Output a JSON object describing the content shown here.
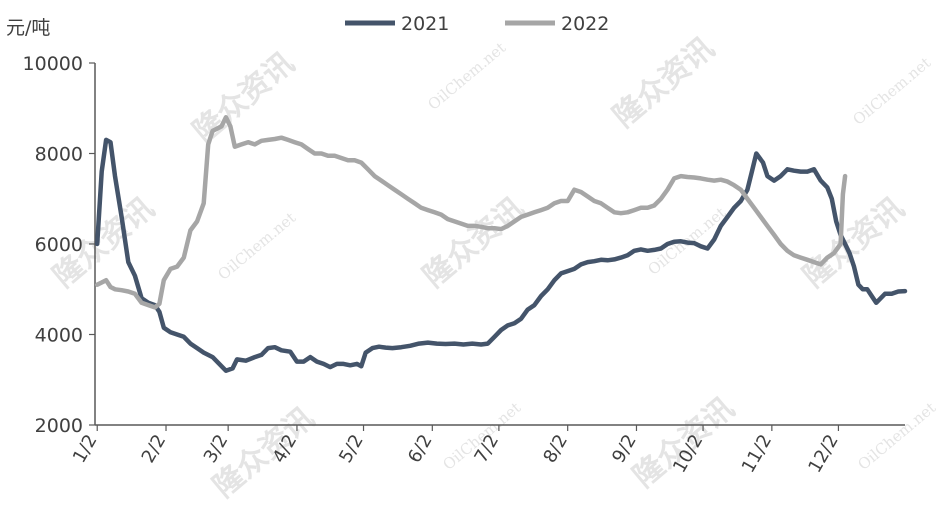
{
  "chart_data": {
    "type": "line",
    "ylabel": "元/吨",
    "ylim": [
      2000,
      10000
    ],
    "yticks": [
      2000,
      4000,
      6000,
      8000,
      10000
    ],
    "xlim": [
      0,
      365
    ],
    "x_ticks": [
      {
        "label": "1/2",
        "day": 1
      },
      {
        "label": "2/2",
        "day": 32
      },
      {
        "label": "3/2",
        "day": 60
      },
      {
        "label": "4/2",
        "day": 91
      },
      {
        "label": "5/2",
        "day": 121
      },
      {
        "label": "6/2",
        "day": 152
      },
      {
        "label": "7/2",
        "day": 182
      },
      {
        "label": "8/2",
        "day": 213
      },
      {
        "label": "9/2",
        "day": 244
      },
      {
        "label": "10/2",
        "day": 274
      },
      {
        "label": "11/2",
        "day": 305
      },
      {
        "label": "12/2",
        "day": 335
      }
    ],
    "legend_position": "top",
    "grid": false,
    "series": [
      {
        "name": "2021",
        "color": "#44546a",
        "points": [
          [
            1,
            6000
          ],
          [
            3,
            7600
          ],
          [
            5,
            8300
          ],
          [
            7,
            8250
          ],
          [
            9,
            7500
          ],
          [
            12,
            6600
          ],
          [
            15,
            5600
          ],
          [
            18,
            5300
          ],
          [
            21,
            4800
          ],
          [
            24,
            4700
          ],
          [
            27,
            4650
          ],
          [
            29,
            4500
          ],
          [
            31,
            4150
          ],
          [
            34,
            4050
          ],
          [
            37,
            4000
          ],
          [
            40,
            3950
          ],
          [
            43,
            3800
          ],
          [
            46,
            3700
          ],
          [
            49,
            3600
          ],
          [
            53,
            3500
          ],
          [
            56,
            3350
          ],
          [
            59,
            3200
          ],
          [
            62,
            3250
          ],
          [
            64,
            3450
          ],
          [
            68,
            3420
          ],
          [
            72,
            3500
          ],
          [
            75,
            3550
          ],
          [
            78,
            3700
          ],
          [
            81,
            3720
          ],
          [
            84,
            3650
          ],
          [
            88,
            3620
          ],
          [
            91,
            3400
          ],
          [
            94,
            3400
          ],
          [
            97,
            3500
          ],
          [
            100,
            3400
          ],
          [
            103,
            3350
          ],
          [
            106,
            3280
          ],
          [
            109,
            3350
          ],
          [
            112,
            3350
          ],
          [
            115,
            3320
          ],
          [
            118,
            3350
          ],
          [
            120,
            3300
          ],
          [
            122,
            3600
          ],
          [
            125,
            3700
          ],
          [
            128,
            3730
          ],
          [
            131,
            3710
          ],
          [
            134,
            3700
          ],
          [
            138,
            3720
          ],
          [
            142,
            3750
          ],
          [
            146,
            3800
          ],
          [
            150,
            3820
          ],
          [
            154,
            3800
          ],
          [
            158,
            3790
          ],
          [
            162,
            3800
          ],
          [
            166,
            3780
          ],
          [
            170,
            3800
          ],
          [
            174,
            3780
          ],
          [
            177,
            3800
          ],
          [
            180,
            3950
          ],
          [
            183,
            4100
          ],
          [
            186,
            4200
          ],
          [
            189,
            4250
          ],
          [
            192,
            4350
          ],
          [
            195,
            4550
          ],
          [
            198,
            4650
          ],
          [
            201,
            4850
          ],
          [
            204,
            5000
          ],
          [
            207,
            5200
          ],
          [
            210,
            5350
          ],
          [
            213,
            5400
          ],
          [
            216,
            5450
          ],
          [
            219,
            5550
          ],
          [
            222,
            5600
          ],
          [
            225,
            5620
          ],
          [
            228,
            5650
          ],
          [
            231,
            5640
          ],
          [
            234,
            5660
          ],
          [
            237,
            5700
          ],
          [
            240,
            5750
          ],
          [
            243,
            5850
          ],
          [
            246,
            5880
          ],
          [
            249,
            5850
          ],
          [
            252,
            5870
          ],
          [
            255,
            5900
          ],
          [
            258,
            6000
          ],
          [
            261,
            6050
          ],
          [
            264,
            6060
          ],
          [
            267,
            6030
          ],
          [
            270,
            6020
          ],
          [
            273,
            5950
          ],
          [
            276,
            5900
          ],
          [
            279,
            6100
          ],
          [
            282,
            6400
          ],
          [
            285,
            6600
          ],
          [
            288,
            6800
          ],
          [
            291,
            6950
          ],
          [
            294,
            7200
          ],
          [
            296,
            7600
          ],
          [
            298,
            8000
          ],
          [
            301,
            7800
          ],
          [
            303,
            7500
          ],
          [
            306,
            7400
          ],
          [
            309,
            7500
          ],
          [
            312,
            7650
          ],
          [
            315,
            7620
          ],
          [
            318,
            7600
          ],
          [
            321,
            7600
          ],
          [
            324,
            7650
          ],
          [
            327,
            7400
          ],
          [
            330,
            7250
          ],
          [
            332,
            7000
          ],
          [
            334,
            6500
          ],
          [
            336,
            6200
          ],
          [
            338,
            6000
          ],
          [
            340,
            5800
          ],
          [
            342,
            5500
          ],
          [
            344,
            5100
          ],
          [
            346,
            5000
          ],
          [
            348,
            5000
          ],
          [
            350,
            4850
          ],
          [
            352,
            4700
          ],
          [
            354,
            4800
          ],
          [
            356,
            4900
          ],
          [
            359,
            4900
          ],
          [
            362,
            4950
          ],
          [
            365,
            4960
          ]
        ]
      },
      {
        "name": "2022",
        "color": "#a6a6a6",
        "points": [
          [
            1,
            5100
          ],
          [
            3,
            5150
          ],
          [
            5,
            5200
          ],
          [
            7,
            5050
          ],
          [
            9,
            5000
          ],
          [
            12,
            4980
          ],
          [
            15,
            4950
          ],
          [
            18,
            4900
          ],
          [
            21,
            4700
          ],
          [
            24,
            4650
          ],
          [
            27,
            4600
          ],
          [
            29,
            4680
          ],
          [
            31,
            5200
          ],
          [
            34,
            5450
          ],
          [
            37,
            5500
          ],
          [
            40,
            5700
          ],
          [
            43,
            6300
          ],
          [
            46,
            6500
          ],
          [
            49,
            6900
          ],
          [
            51,
            8200
          ],
          [
            53,
            8500
          ],
          [
            55,
            8550
          ],
          [
            57,
            8600
          ],
          [
            59,
            8800
          ],
          [
            61,
            8600
          ],
          [
            63,
            8150
          ],
          [
            66,
            8200
          ],
          [
            69,
            8250
          ],
          [
            72,
            8200
          ],
          [
            75,
            8280
          ],
          [
            78,
            8300
          ],
          [
            81,
            8320
          ],
          [
            84,
            8350
          ],
          [
            87,
            8300
          ],
          [
            90,
            8250
          ],
          [
            93,
            8200
          ],
          [
            96,
            8100
          ],
          [
            99,
            8000
          ],
          [
            102,
            8000
          ],
          [
            105,
            7950
          ],
          [
            108,
            7950
          ],
          [
            111,
            7900
          ],
          [
            114,
            7850
          ],
          [
            117,
            7850
          ],
          [
            120,
            7800
          ],
          [
            123,
            7650
          ],
          [
            126,
            7500
          ],
          [
            129,
            7400
          ],
          [
            132,
            7300
          ],
          [
            135,
            7200
          ],
          [
            138,
            7100
          ],
          [
            141,
            7000
          ],
          [
            144,
            6900
          ],
          [
            147,
            6800
          ],
          [
            150,
            6750
          ],
          [
            153,
            6700
          ],
          [
            156,
            6650
          ],
          [
            159,
            6550
          ],
          [
            162,
            6500
          ],
          [
            165,
            6450
          ],
          [
            168,
            6400
          ],
          [
            171,
            6400
          ],
          [
            174,
            6380
          ],
          [
            177,
            6350
          ],
          [
            180,
            6350
          ],
          [
            183,
            6330
          ],
          [
            186,
            6400
          ],
          [
            189,
            6500
          ],
          [
            192,
            6600
          ],
          [
            195,
            6650
          ],
          [
            198,
            6700
          ],
          [
            201,
            6750
          ],
          [
            204,
            6800
          ],
          [
            207,
            6900
          ],
          [
            210,
            6950
          ],
          [
            213,
            6950
          ],
          [
            216,
            7200
          ],
          [
            219,
            7150
          ],
          [
            222,
            7050
          ],
          [
            225,
            6950
          ],
          [
            228,
            6900
          ],
          [
            231,
            6800
          ],
          [
            234,
            6700
          ],
          [
            237,
            6680
          ],
          [
            240,
            6700
          ],
          [
            243,
            6750
          ],
          [
            246,
            6800
          ],
          [
            249,
            6800
          ],
          [
            252,
            6850
          ],
          [
            255,
            7000
          ],
          [
            258,
            7200
          ],
          [
            261,
            7450
          ],
          [
            264,
            7500
          ],
          [
            267,
            7480
          ],
          [
            270,
            7470
          ],
          [
            273,
            7450
          ],
          [
            276,
            7420
          ],
          [
            279,
            7400
          ],
          [
            282,
            7420
          ],
          [
            285,
            7380
          ],
          [
            288,
            7300
          ],
          [
            291,
            7200
          ],
          [
            294,
            7000
          ],
          [
            297,
            6800
          ],
          [
            300,
            6600
          ],
          [
            303,
            6400
          ],
          [
            306,
            6200
          ],
          [
            309,
            6000
          ],
          [
            312,
            5850
          ],
          [
            315,
            5750
          ],
          [
            318,
            5700
          ],
          [
            321,
            5650
          ],
          [
            324,
            5600
          ],
          [
            327,
            5550
          ],
          [
            330,
            5700
          ],
          [
            333,
            5800
          ],
          [
            336,
            6000
          ],
          [
            337,
            7100
          ],
          [
            338,
            7500
          ]
        ]
      }
    ]
  },
  "watermark": {
    "brand": "隆众资讯",
    "site": "OilChem.net"
  }
}
